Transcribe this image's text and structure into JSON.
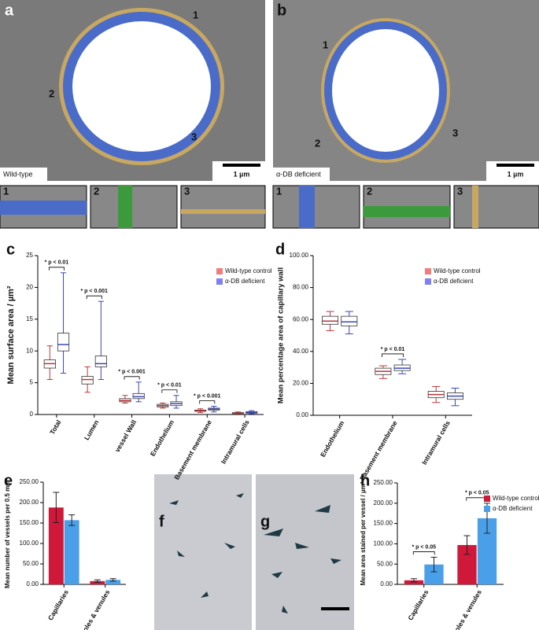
{
  "images": {
    "a": {
      "panel": "a",
      "label": "Wild-type",
      "scale": "1 µm",
      "regions": [
        "1",
        "2",
        "3"
      ],
      "insets": [
        "1",
        "2",
        "3"
      ]
    },
    "b": {
      "panel": "b",
      "label": "α-DB deficient",
      "scale": "1 µm",
      "regions": [
        "1",
        "2",
        "3"
      ],
      "insets": [
        "1",
        "2",
        "3"
      ]
    },
    "f": {
      "panel": "f"
    },
    "g": {
      "panel": "g"
    }
  },
  "chart_data": [
    {
      "type": "box",
      "panel": "c",
      "ylabel": "Mean surface area / µm²",
      "categories": [
        "Total",
        "Lumen",
        "vessel Wall",
        "Endothelium",
        "Basement membrane",
        "Intramural cells"
      ],
      "series": [
        {
          "name": "Wild-type control",
          "color": "#b8383c",
          "legend_color": "#f07c7c",
          "whisker_low": [
            5.5,
            3.5,
            1.8,
            1.0,
            0.3,
            0.1
          ],
          "q1": [
            7.3,
            4.8,
            2.0,
            1.2,
            0.5,
            0.15
          ],
          "median": [
            8.0,
            5.5,
            2.2,
            1.4,
            0.6,
            0.2
          ],
          "q3": [
            8.6,
            6.0,
            2.5,
            1.6,
            0.7,
            0.3
          ],
          "whisker_high": [
            10.8,
            7.5,
            3.0,
            1.8,
            0.9,
            0.4
          ]
        },
        {
          "name": "α-DB deficient",
          "color": "#3c48b4",
          "legend_color": "#8080f0",
          "whisker_low": [
            6.5,
            5.5,
            2.0,
            1.0,
            0.4,
            0.1
          ],
          "q1": [
            10.0,
            7.5,
            2.5,
            1.4,
            0.7,
            0.2
          ],
          "median": [
            11.0,
            8.0,
            2.8,
            1.7,
            0.85,
            0.3
          ],
          "q3": [
            12.8,
            9.2,
            3.3,
            2.0,
            1.0,
            0.45
          ],
          "whisker_high": [
            22.3,
            17.8,
            5.1,
            3.0,
            1.3,
            0.6
          ]
        }
      ],
      "annotations": [
        "* p < 0.01",
        "* p < 0.001",
        "* p < 0.001",
        "* p < 0.01",
        "* p < 0.001",
        null
      ],
      "ylim": [
        0,
        25
      ],
      "yticks": [
        0,
        5,
        10,
        15,
        20,
        25
      ],
      "legend": "upper right"
    },
    {
      "type": "box",
      "panel": "d",
      "ylabel": "Mean percentage area of capillary wall",
      "categories": [
        "Endothelium",
        "Basement membrane",
        "Intramural cells"
      ],
      "series": [
        {
          "name": "Wild-type control",
          "color": "#b8383c",
          "legend_color": "#f07c7c",
          "whisker_low": [
            53,
            23,
            8
          ],
          "q1": [
            57,
            25.5,
            11
          ],
          "median": [
            59,
            27.5,
            13
          ],
          "q3": [
            62,
            29.5,
            15
          ],
          "whisker_high": [
            65,
            31,
            18
          ]
        },
        {
          "name": "α-DB deficient",
          "color": "#3c48b4",
          "legend_color": "#8080f0",
          "whisker_low": [
            51,
            26,
            6
          ],
          "q1": [
            56,
            28,
            10
          ],
          "median": [
            58.5,
            29.5,
            12
          ],
          "q3": [
            62,
            31.5,
            14
          ],
          "whisker_high": [
            65,
            35,
            17
          ]
        }
      ],
      "annotations": [
        null,
        "* p < 0.01",
        null
      ],
      "ylim": [
        0,
        100
      ],
      "yticks": [
        {
          "value": 0,
          "label": "0.00"
        },
        {
          "value": 20,
          "label": "20.00"
        },
        {
          "value": 40,
          "label": "40.00"
        },
        {
          "value": 60,
          "label": "60.00"
        },
        {
          "value": 80,
          "label": "80.00"
        },
        {
          "value": 100,
          "label": "100.00"
        }
      ],
      "legend": "upper right"
    },
    {
      "type": "bar",
      "panel": "e",
      "ylabel": "Mean number of vessels per 0.5 mm²",
      "categories": [
        "Capillaries",
        "Arterioles & venules"
      ],
      "series": [
        {
          "color": "#d0183a",
          "values": [
            188,
            8
          ],
          "errors": [
            37,
            3
          ]
        },
        {
          "color": "#4aa0e8",
          "values": [
            157,
            11
          ],
          "errors": [
            13,
            3
          ]
        }
      ],
      "ylim": [
        0,
        250
      ],
      "yticks": [
        {
          "value": 0,
          "label": "0.00"
        },
        {
          "value": 50,
          "label": "50.00"
        },
        {
          "value": 100,
          "label": "100.00"
        },
        {
          "value": 150,
          "label": "150.00"
        },
        {
          "value": 200,
          "label": "200.00"
        },
        {
          "value": 250,
          "label": "250.00"
        }
      ]
    },
    {
      "type": "bar",
      "panel": "h",
      "ylabel": "Mean area stained per vessel / µm²",
      "categories": [
        "Capillaries",
        "Arterioles & venules"
      ],
      "series": [
        {
          "name": "Wild-type control",
          "color": "#d0183a",
          "values": [
            10,
            97
          ],
          "errors": [
            4,
            23
          ]
        },
        {
          "name": "α-DB deficient",
          "color": "#4aa0e8",
          "values": [
            49,
            163
          ],
          "errors": [
            18,
            37
          ]
        }
      ],
      "annotations": [
        "* p < 0.05",
        "* p < 0.05"
      ],
      "ylim": [
        0,
        250
      ],
      "yticks": [
        {
          "value": 0,
          "label": "0.00"
        },
        {
          "value": 50,
          "label": "50.00"
        },
        {
          "value": 100,
          "label": "100.00"
        },
        {
          "value": 150,
          "label": "150.00"
        },
        {
          "value": 200,
          "label": "200.00"
        },
        {
          "value": 250,
          "label": "250.00"
        }
      ],
      "legend": "upper right"
    }
  ]
}
